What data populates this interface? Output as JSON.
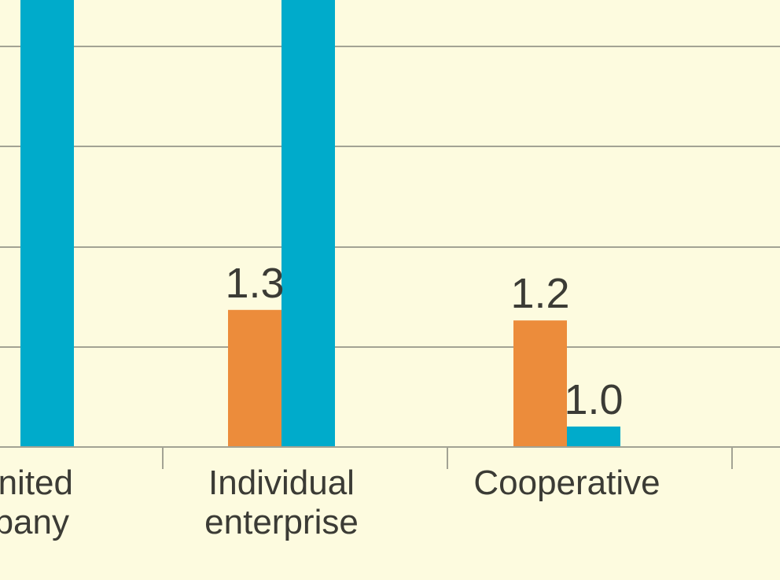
{
  "chart_data": {
    "type": "bar",
    "categories": [
      "Limited\ncompany",
      "Individual\nenterprise",
      "Cooperative"
    ],
    "visible_category_text": [
      [
        "nited",
        "pany"
      ],
      [
        "Individual",
        "enterprise"
      ],
      [
        "Cooperative"
      ]
    ],
    "series": [
      {
        "values": [
          null,
          1.3,
          1.2
        ],
        "color": "#ec8c3b"
      },
      {
        "values": [
          null,
          null,
          1.0
        ],
        "color": "#00abcb"
      }
    ],
    "data_labels": [
      [
        null,
        "1.3",
        "1.2"
      ],
      [
        null,
        null,
        "1.0"
      ]
    ],
    "grid": true,
    "legend": "none"
  }
}
